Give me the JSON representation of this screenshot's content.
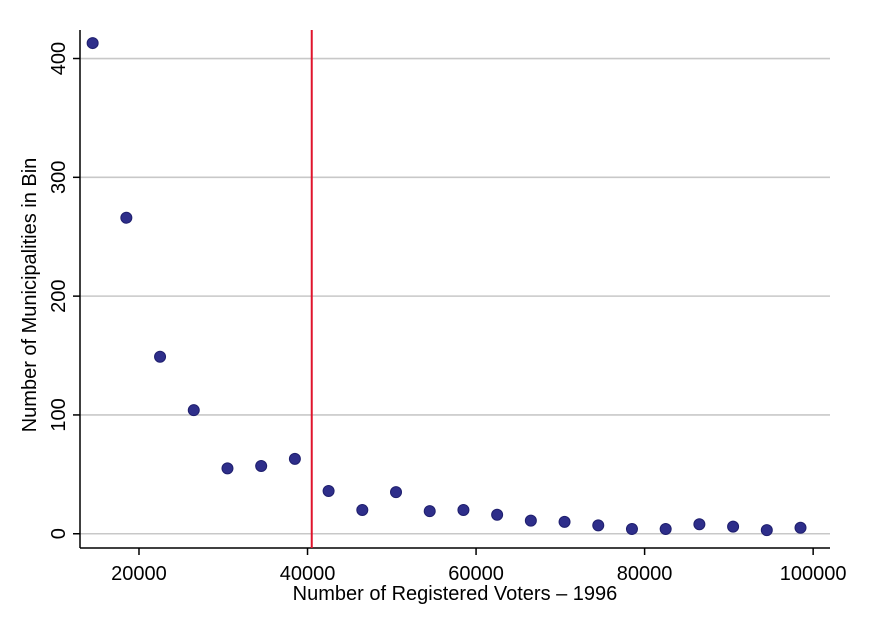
{
  "chart_data": {
    "type": "scatter",
    "xlabel": "Number of Registered Voters – 1996",
    "ylabel": "Number of Municipalities in Bin",
    "xlim": [
      13000,
      102000
    ],
    "ylim": [
      -12,
      424
    ],
    "x_ticks": [
      20000,
      40000,
      60000,
      80000,
      100000
    ],
    "y_ticks": [
      0,
      100,
      200,
      300,
      400
    ],
    "grid": "horizontal",
    "legend": "none",
    "threshold_line": {
      "x": 40500,
      "color": "#e0142c"
    },
    "marker_color": "#2e2e8a",
    "series": [
      {
        "x": [
          14500,
          18500,
          22500,
          26500,
          30500,
          34500,
          38500,
          42500,
          46500,
          50500,
          54500,
          58500,
          62500,
          66500,
          70500,
          74500,
          78500,
          82500,
          86500,
          90500,
          94500,
          98500
        ],
        "y": [
          413,
          266,
          149,
          104,
          55,
          57,
          63,
          36,
          20,
          35,
          19,
          20,
          16,
          11,
          10,
          7,
          4,
          4,
          8,
          6,
          3,
          5
        ]
      }
    ]
  }
}
